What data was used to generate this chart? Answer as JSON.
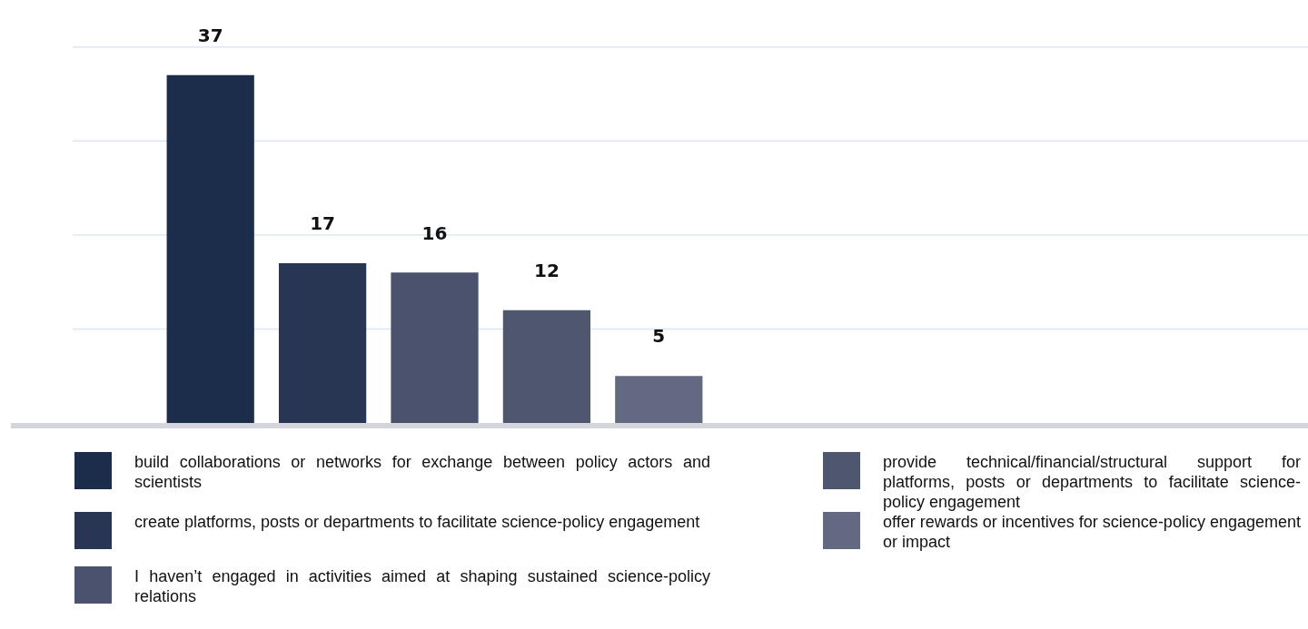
{
  "chart_data": {
    "type": "bar",
    "categories": [
      null,
      null,
      null,
      null,
      null
    ],
    "stacked": true,
    "data_labels": true,
    "grid": "y",
    "yticks": [
      {
        "value": 10,
        "label": null
      },
      {
        "value": 20,
        "label": null
      },
      {
        "value": 30,
        "label": null
      },
      {
        "value": 40,
        "label": null
      }
    ],
    "tick_labels": false,
    "legend": "bottom",
    "series": [
      {
        "name": "build collaborations or networks for exchange between policy actors and scientists",
        "color": "#1b2d4a",
        "values": [
          37,
          null,
          null,
          null,
          null
        ]
      },
      {
        "name": "create platforms, posts or departments to facilitate science-policy engagement",
        "color": "#293653",
        "values": [
          null,
          17,
          null,
          null,
          null
        ]
      },
      {
        "name": "I haven’t engaged in activities aimed at shaping sustained science-policy relations",
        "color": "#4a526d",
        "values": [
          null,
          null,
          16,
          null,
          null
        ]
      },
      {
        "name": "provide technical/financial/structural support for platforms, posts or departments to facilitate science-policy engagement",
        "color": "#4f576f",
        "values": [
          null,
          null,
          null,
          12,
          null
        ]
      },
      {
        "name": "offer rewards or incentives for science-policy engagement or impact",
        "color": "#646982",
        "values": [
          null,
          null,
          null,
          null,
          5
        ]
      }
    ]
  }
}
